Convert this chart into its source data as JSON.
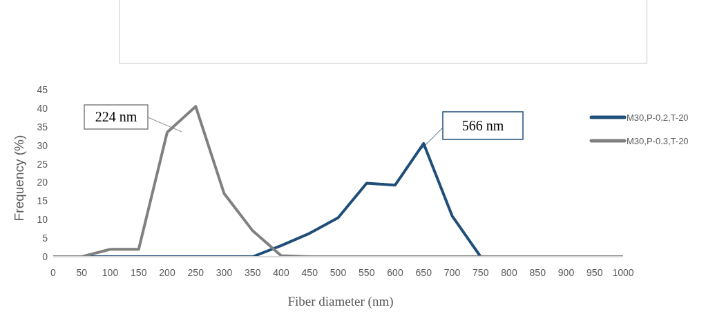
{
  "chart_data": {
    "type": "line",
    "xlabel": "Fiber diameter (nm)",
    "ylabel": "Frequency (%)",
    "categories": [
      "0",
      "50",
      "100",
      "150",
      "200",
      "250",
      "300",
      "350",
      "400",
      "450",
      "500",
      "550",
      "600",
      "650",
      "700",
      "750",
      "800",
      "850",
      "900",
      "950",
      "1000"
    ],
    "series": [
      {
        "name": "M30,P-0.2,T-20",
        "color": "#1f4e79",
        "values": [
          0,
          0,
          0,
          0,
          0,
          0,
          0,
          0,
          3,
          6.3,
          10.5,
          19.8,
          19.3,
          30.5,
          11,
          0,
          0,
          null,
          null,
          null,
          null
        ]
      },
      {
        "name": "M30,P-0.3,T-20",
        "color": "#808080",
        "values": [
          0,
          0,
          2,
          2,
          33.5,
          40.5,
          17,
          7,
          0.3,
          0,
          0,
          0,
          0,
          0,
          0,
          0,
          0,
          0,
          0,
          0,
          0
        ]
      }
    ],
    "ylim": [
      0,
      45
    ],
    "yticks": [
      0,
      5,
      10,
      15,
      20,
      25,
      30,
      35,
      40,
      45
    ],
    "annotations": [
      "224 nm",
      "566 nm"
    ],
    "grid": false,
    "legend": "right",
    "marker": "none",
    "line_style": "solid"
  }
}
